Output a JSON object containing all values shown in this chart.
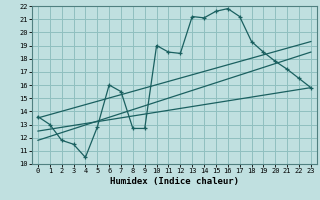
{
  "title": "",
  "xlabel": "Humidex (Indice chaleur)",
  "bg_color": "#c0e0e0",
  "grid_color": "#90c0c0",
  "line_color": "#1a6060",
  "xlim": [
    -0.5,
    23.5
  ],
  "ylim": [
    10,
    22
  ],
  "xticks": [
    0,
    1,
    2,
    3,
    4,
    5,
    6,
    7,
    8,
    9,
    10,
    11,
    12,
    13,
    14,
    15,
    16,
    17,
    18,
    19,
    20,
    21,
    22,
    23
  ],
  "yticks": [
    10,
    11,
    12,
    13,
    14,
    15,
    16,
    17,
    18,
    19,
    20,
    21,
    22
  ],
  "line1_x": [
    0,
    1,
    2,
    3,
    4,
    5,
    6,
    7,
    8,
    9,
    10,
    11,
    12,
    13,
    14,
    15,
    16,
    17,
    18,
    19,
    20,
    21,
    22,
    23
  ],
  "line1_y": [
    13.6,
    13.0,
    11.8,
    11.5,
    10.5,
    12.8,
    16.0,
    15.5,
    12.7,
    12.7,
    19.0,
    18.5,
    18.4,
    21.2,
    21.1,
    21.6,
    21.8,
    21.2,
    19.3,
    18.5,
    17.8,
    17.2,
    16.5,
    15.8
  ],
  "line2_x": [
    0,
    23
  ],
  "line2_y": [
    13.5,
    19.3
  ],
  "line3_x": [
    0,
    23
  ],
  "line3_y": [
    11.8,
    18.5
  ],
  "line4_x": [
    0,
    23
  ],
  "line4_y": [
    12.5,
    15.8
  ]
}
